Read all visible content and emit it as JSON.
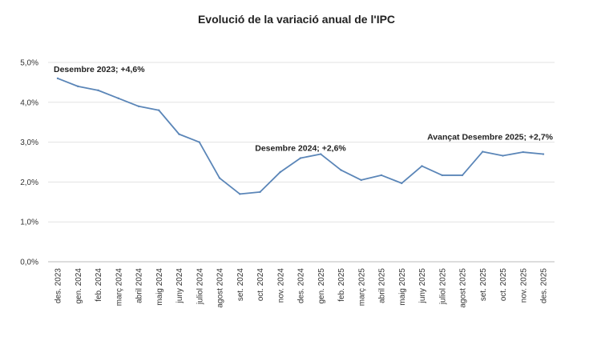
{
  "chart_data": {
    "type": "line",
    "title": "Evolució de la variació anual de l'IPC",
    "xlabel": "",
    "ylabel": "",
    "ylim": [
      0,
      5
    ],
    "yticks": [
      "0,0%",
      "1,0%",
      "2,0%",
      "3,0%",
      "4,0%",
      "5,0%"
    ],
    "grid": true,
    "legend": "none",
    "line_color": "#5b86b8",
    "categories": [
      "des. 2023",
      "gen. 2024",
      "feb. 2024",
      "març 2024",
      "abril 2024",
      "maig 2024",
      "juny 2024",
      "juliol 2024",
      "agost 2024",
      "set. 2024",
      "oct. 2024",
      "nov. 2024",
      "des. 2024",
      "gen. 2025",
      "feb. 2025",
      "març 2025",
      "abril 2025",
      "maig 2025",
      "juny 2025",
      "juliol 2025",
      "agost 2025",
      "set. 2025",
      "oct. 2025",
      "nov. 2025",
      "des. 2025"
    ],
    "values": [
      4.6,
      4.4,
      4.3,
      4.1,
      3.9,
      3.8,
      3.2,
      3.0,
      2.1,
      1.7,
      1.75,
      2.25,
      2.6,
      2.7,
      2.3,
      2.05,
      2.17,
      1.97,
      2.4,
      2.17,
      2.17,
      2.76,
      2.66,
      2.75,
      2.7
    ],
    "annotations": [
      {
        "index": 0,
        "text": "Desembre 2023; +4,6%"
      },
      {
        "index": 12,
        "text": "Desembre 2024;  +2,6%"
      },
      {
        "index": 24,
        "text": "Avançat Desembre 2025; +2,7%"
      }
    ]
  }
}
